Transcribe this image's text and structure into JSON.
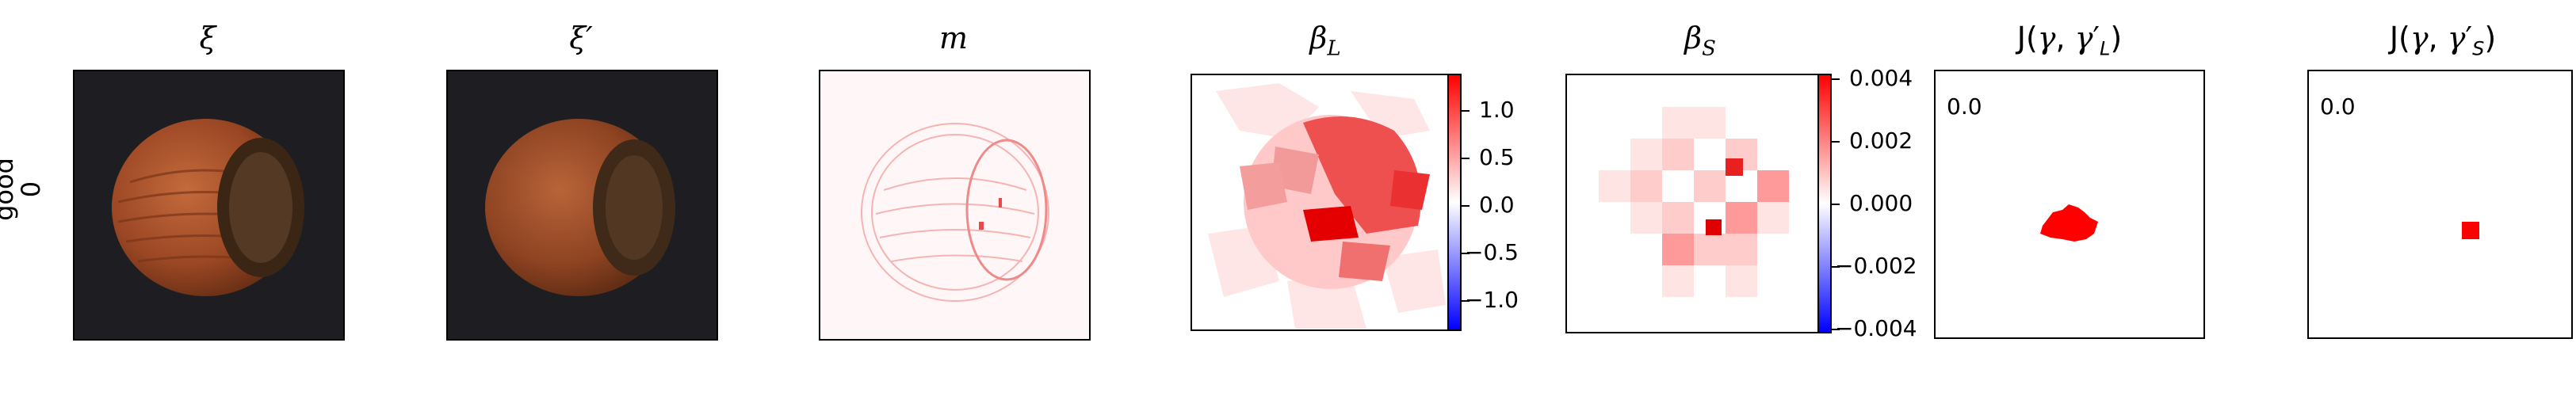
{
  "row": {
    "label_line1": "good",
    "label_line2": "0"
  },
  "panels": {
    "xi": {
      "title": "ξ"
    },
    "xi_prime": {
      "title": "ξ′"
    },
    "m": {
      "title": "m"
    },
    "beta_L": {
      "title": "β_L"
    },
    "beta_S": {
      "title": "β_S"
    },
    "J_L": {
      "title": "J(γ, γ′_L)",
      "value": "0.0"
    },
    "J_S": {
      "title": "J(γ, γ′_S)",
      "value": "0.0"
    }
  },
  "colorbars": {
    "beta_L": {
      "ticks": [
        "1.0",
        "0.5",
        "0.0",
        "−0.5",
        "−1.0"
      ]
    },
    "beta_S": {
      "ticks": [
        "0.004",
        "0.002",
        "0.000",
        "−0.002",
        "−0.004"
      ]
    }
  },
  "colors": {
    "red": "#ff0000",
    "blue": "#0000ff",
    "hazelnut": "#9a4a25",
    "background_dark": "#1e1e22"
  }
}
